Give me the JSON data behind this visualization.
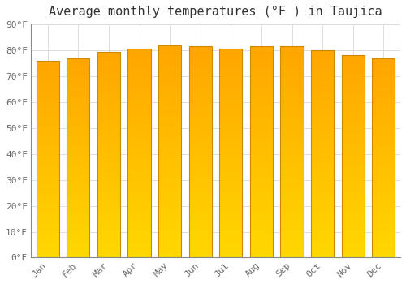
{
  "title": "Average monthly temperatures (°F ) in Taujica",
  "categories": [
    "Jan",
    "Feb",
    "Mar",
    "Apr",
    "May",
    "Jun",
    "Jul",
    "Aug",
    "Sep",
    "Oct",
    "Nov",
    "Dec"
  ],
  "values": [
    76.0,
    77.0,
    79.5,
    80.5,
    82.0,
    81.5,
    80.5,
    81.5,
    81.5,
    80.0,
    78.0,
    77.0
  ],
  "bar_color_bottom": "#FFD700",
  "bar_color_top": "#FFA520",
  "ylim": [
    0,
    90
  ],
  "yticks": [
    0,
    10,
    20,
    30,
    40,
    50,
    60,
    70,
    80,
    90
  ],
  "ytick_labels": [
    "0°F",
    "10°F",
    "20°F",
    "30°F",
    "40°F",
    "50°F",
    "60°F",
    "70°F",
    "80°F",
    "90°F"
  ],
  "background_color": "#ffffff",
  "grid_color": "#dddddd",
  "bar_edge_color": "#cc8800",
  "title_fontsize": 11,
  "tick_fontsize": 8,
  "font_family": "monospace",
  "tick_color": "#666666"
}
